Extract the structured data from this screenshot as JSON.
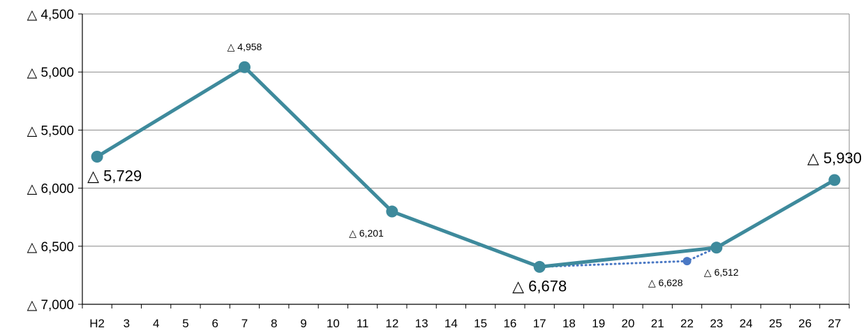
{
  "chart_data": {
    "type": "line",
    "title": "",
    "xlabel": "",
    "ylabel": "",
    "grid": true,
    "legend": "none",
    "categories": [
      "H2",
      "3",
      "4",
      "5",
      "6",
      "7",
      "8",
      "9",
      "10",
      "11",
      "12",
      "13",
      "14",
      "15",
      "16",
      "17",
      "18",
      "19",
      "20",
      "21",
      "22",
      "23",
      "24",
      "25",
      "26",
      "27"
    ],
    "yticks": [
      -4500,
      -5000,
      -5500,
      -6000,
      -6500,
      -7000
    ],
    "ytick_labels": [
      "△ 4,500",
      "△ 5,000",
      "△ 5,500",
      "△ 6,000",
      "△ 6,500",
      "△ 7,000"
    ],
    "ylim": [
      -7000,
      -4500
    ],
    "colors": {
      "main": "#3e8a9c",
      "estimate": "#4a78c4",
      "grid": "#888888",
      "axis": "#000000"
    },
    "series": [
      {
        "style": "solid",
        "points": [
          {
            "x": "H2",
            "y": -5729,
            "label": "△ 5,729",
            "label_size": "large",
            "label_pos": "below"
          },
          {
            "x": "7",
            "y": -4958,
            "label": "△ 4,958",
            "label_size": "small",
            "label_pos": "above"
          },
          {
            "x": "12",
            "y": -6201,
            "label": "△ 6,201",
            "label_size": "small",
            "label_pos": "below-left"
          },
          {
            "x": "17",
            "y": -6678,
            "label": "△ 6,678",
            "label_size": "large",
            "label_pos": "below"
          },
          {
            "x": "23",
            "y": -6512,
            "label": "△ 6,512",
            "label_size": "small",
            "label_pos": "below-right"
          },
          {
            "x": "27",
            "y": -5930,
            "label": "△ 5,930",
            "label_size": "large",
            "label_pos": "above"
          }
        ]
      },
      {
        "style": "dotted",
        "points": [
          {
            "x": "17",
            "y": -6678,
            "label": "",
            "label_size": "",
            "label_pos": ""
          },
          {
            "x": "22",
            "y": -6628,
            "label": "△ 6,628",
            "label_size": "small",
            "label_pos": "below-left"
          },
          {
            "x": "23",
            "y": -6512,
            "label": "",
            "label_size": "",
            "label_pos": ""
          }
        ]
      }
    ]
  }
}
